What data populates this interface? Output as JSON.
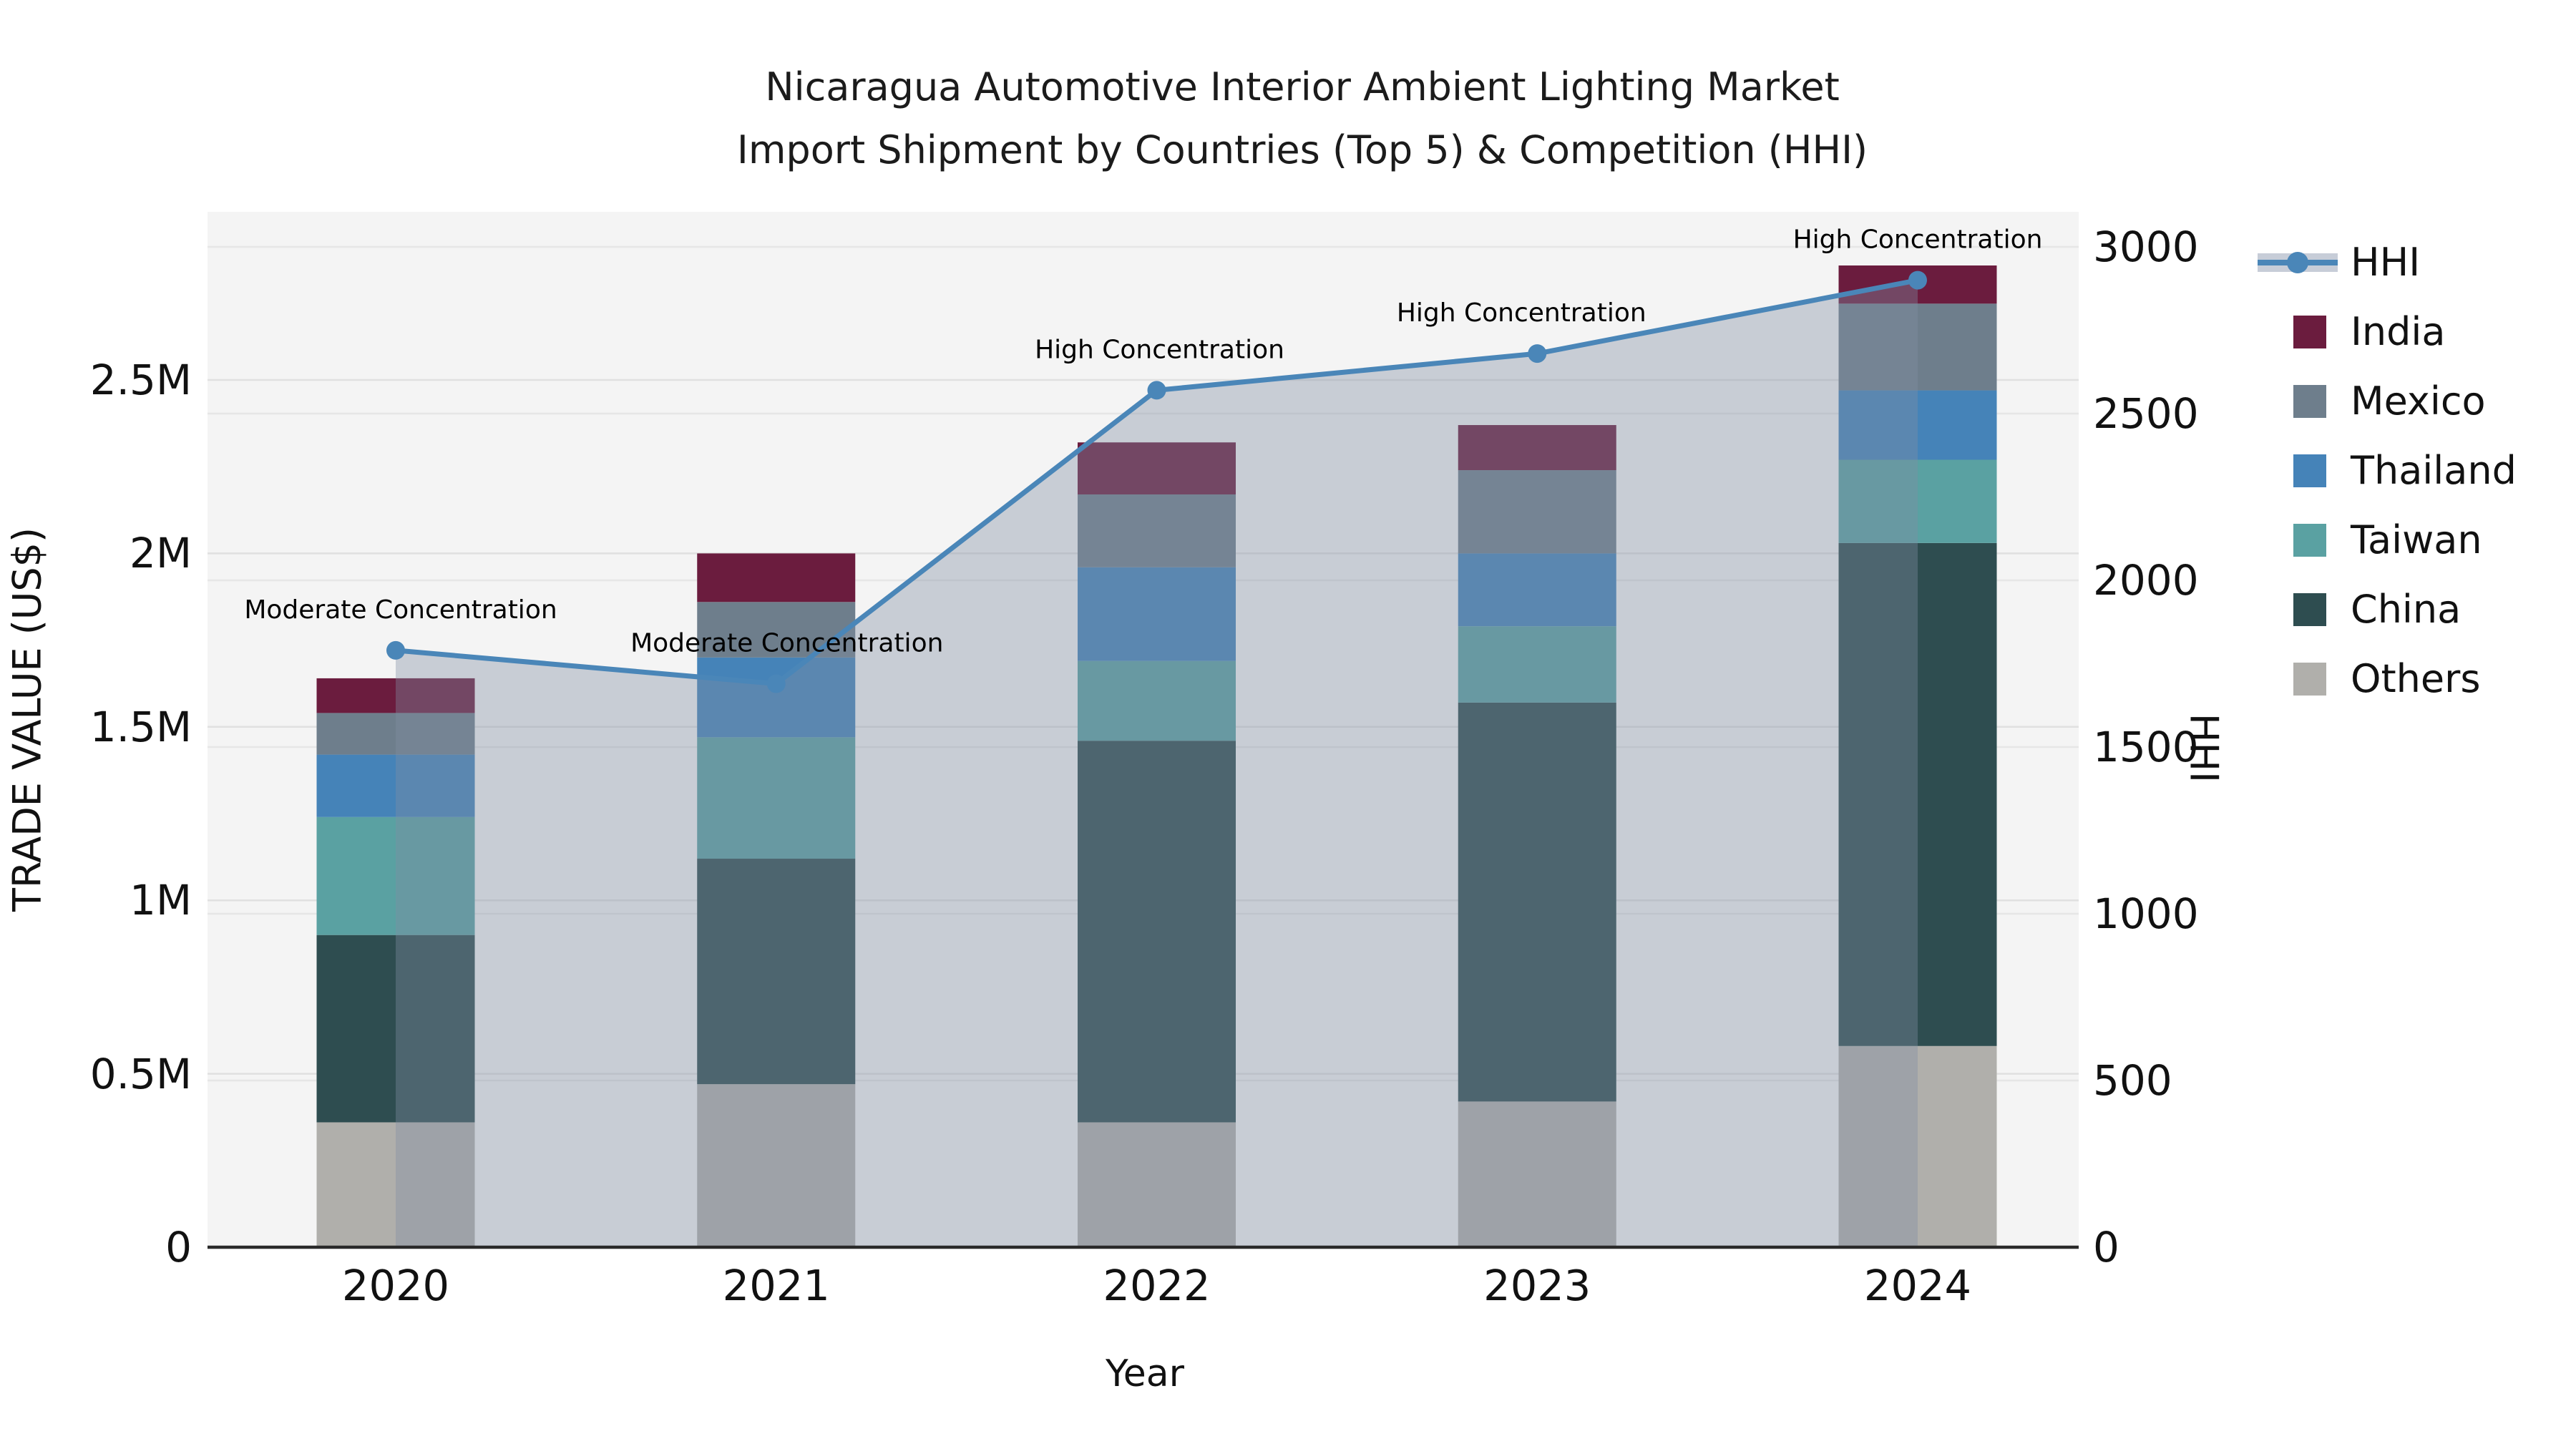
{
  "title": {
    "line1": "Nicaragua Automotive Interior Ambient Lighting Market",
    "line2": "Import Shipment by Countries (Top 5) & Competition (HHI)"
  },
  "axes": {
    "left_label": "TRADE VALUE (US$)",
    "right_label": "HHI",
    "x_label": "Year",
    "left_ticks": [
      {
        "label": "0",
        "value": 0
      },
      {
        "label": "0.5M",
        "value": 0.5
      },
      {
        "label": "1M",
        "value": 1
      },
      {
        "label": "1.5M",
        "value": 1.5
      },
      {
        "label": "2M",
        "value": 2
      },
      {
        "label": "2.5M",
        "value": 2.5
      }
    ],
    "right_ticks": [
      {
        "label": "0",
        "value": 0
      },
      {
        "label": "500",
        "value": 500
      },
      {
        "label": "1000",
        "value": 1000
      },
      {
        "label": "1500",
        "value": 1500
      },
      {
        "label": "2000",
        "value": 2000
      },
      {
        "label": "2500",
        "value": 2500
      },
      {
        "label": "3000",
        "value": 3000
      }
    ]
  },
  "legend": {
    "items": [
      {
        "label": "HHI",
        "type": "line",
        "color": "#4a86b8"
      },
      {
        "label": "India",
        "type": "box",
        "color": "#6b1c3e"
      },
      {
        "label": "Mexico",
        "type": "box",
        "color": "#6e7e8c"
      },
      {
        "label": "Thailand",
        "type": "box",
        "color": "#4583b8"
      },
      {
        "label": "Taiwan",
        "type": "box",
        "color": "#5aa1a2"
      },
      {
        "label": "China",
        "type": "box",
        "color": "#2e4d50"
      },
      {
        "label": "Others",
        "type": "box",
        "color": "#b0afab"
      }
    ]
  },
  "chart_data": {
    "type": "bar",
    "subtype": "stacked-bar-with-line-overlay",
    "title": "Nicaragua Automotive Interior Ambient Lighting Market — Import Shipment by Countries (Top 5) & Competition (HHI)",
    "categories": [
      "2020",
      "2021",
      "2022",
      "2023",
      "2024"
    ],
    "value_unit": "US$ millions",
    "series": [
      {
        "name": "Others",
        "color": "#b0afab",
        "values": [
          0.36,
          0.47,
          0.36,
          0.42,
          0.58
        ]
      },
      {
        "name": "China",
        "color": "#2e4d50",
        "values": [
          0.54,
          0.65,
          1.1,
          1.15,
          1.45
        ]
      },
      {
        "name": "Taiwan",
        "color": "#5aa1a2",
        "values": [
          0.34,
          0.35,
          0.23,
          0.22,
          0.24
        ]
      },
      {
        "name": "Thailand",
        "color": "#4583b8",
        "values": [
          0.18,
          0.23,
          0.27,
          0.21,
          0.2
        ]
      },
      {
        "name": "Mexico",
        "color": "#6e7e8c",
        "values": [
          0.12,
          0.16,
          0.21,
          0.24,
          0.25
        ]
      },
      {
        "name": "India",
        "color": "#6b1c3e",
        "values": [
          0.1,
          0.14,
          0.15,
          0.13,
          0.11
        ]
      }
    ],
    "bar_totals_musd": [
      1.64,
      2.0,
      2.32,
      2.37,
      2.83
    ],
    "line": {
      "name": "HHI",
      "color": "#4a86b8",
      "axis": "right",
      "area_fill": "rgba(130,142,163,0.38)",
      "values": [
        1790,
        1690,
        2570,
        2680,
        2900
      ]
    },
    "annotations": [
      "Moderate Concentration",
      "Moderate Concentration",
      "High Concentration",
      "High Concentration",
      "High Concentration"
    ],
    "xlabel": "Year",
    "ylabel_left": "TRADE VALUE (US$)",
    "ylabel_right": "HHI",
    "ylim_left_musd": [
      0,
      2.985
    ],
    "ylim_right": [
      0,
      3000
    ],
    "grid": true,
    "legend_position": "right",
    "plot_background": "#f4f4f4",
    "grid_color": "#e0e0e0"
  }
}
